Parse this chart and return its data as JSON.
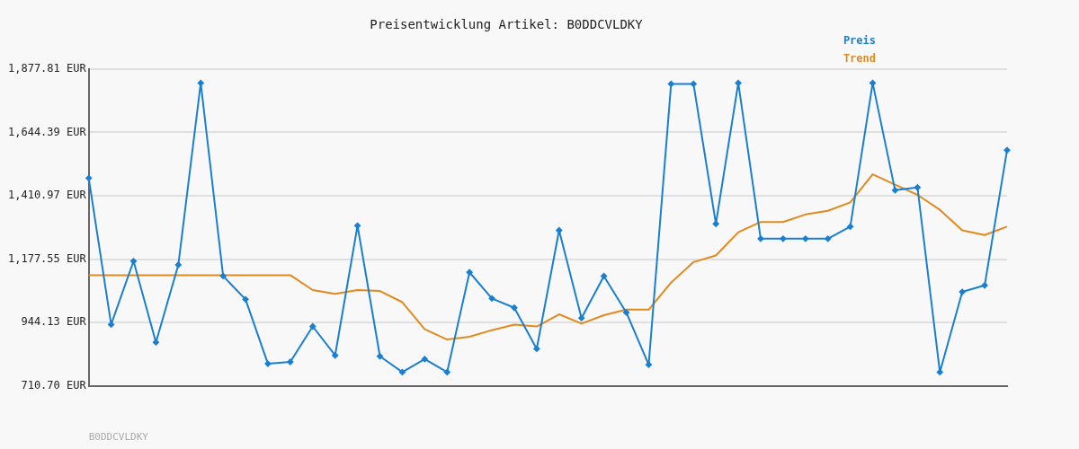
{
  "chart_data": {
    "type": "line",
    "title": "Preisentwicklung Artikel: B0DDCVLDKY",
    "categories": [
      null,
      null,
      null,
      null,
      null,
      null,
      null,
      null,
      null,
      null,
      null,
      null,
      null,
      null,
      null,
      null,
      null,
      null,
      null,
      null,
      null,
      null,
      null,
      null,
      null,
      null,
      null,
      null,
      null,
      null,
      null,
      null,
      null,
      null,
      null,
      null,
      null,
      null,
      null,
      null,
      null,
      null
    ],
    "series": [
      {
        "name": "Preis",
        "color": "#1a7fd0",
        "marker": "diamond",
        "values": [
          1476.2,
          937.3,
          1170.7,
          872.0,
          1157.0,
          1826.3,
          1115.8,
          1030.0,
          793.1,
          800.0,
          930.4,
          824.0,
          1301.1,
          820.5,
          762.2,
          810.2,
          762.2,
          1129.5,
          1033.4,
          999.0,
          848.0,
          1284.0,
          961.3,
          1115.8,
          981.9,
          789.7,
          1822.9,
          1822.9,
          1308.0,
          1826.3,
          1253.1,
          1253.1,
          1253.1,
          1253.1,
          1297.7,
          1826.3,
          1431.6,
          1441.9,
          762.2,
          1057.4,
          1081.4,
          1579.2
        ]
      },
      {
        "name": "Trend",
        "color": "#e08a1e",
        "marker": "none",
        "values": [
          1119.2,
          1119.2,
          1119.2,
          1119.2,
          1119.2,
          1119.2,
          1119.2,
          1119.2,
          1119.2,
          1119.2,
          1064.3,
          1050.5,
          1064.3,
          1060.8,
          1019.6,
          920.1,
          882.3,
          892.6,
          916.7,
          937.3,
          930.4,
          975.0,
          940.7,
          971.6,
          992.2,
          992.2,
          1091.7,
          1167.2,
          1191.3,
          1277.1,
          1314.8,
          1314.8,
          1342.3,
          1356.0,
          1386.9,
          1489.9,
          1452.2,
          1414.5,
          1359.5,
          1284.0,
          1266.8,
          1297.7
        ]
      }
    ],
    "ylim": [
      710.7,
      1877.81
    ],
    "yticks": [
      {
        "value": 710.7,
        "label": "710.70 EUR"
      },
      {
        "value": 944.13,
        "label": "944.13 EUR"
      },
      {
        "value": 1177.55,
        "label": "1,177.55 EUR"
      },
      {
        "value": 1410.97,
        "label": "1,410.97 EUR"
      },
      {
        "value": 1644.39,
        "label": "1,644.39 EUR"
      },
      {
        "value": 1877.81,
        "label": "1,877.81 EUR"
      }
    ],
    "grid": "y",
    "legend": "top right",
    "line_style": "solid",
    "annotations": [
      "B0DDCVLDKY"
    ]
  }
}
